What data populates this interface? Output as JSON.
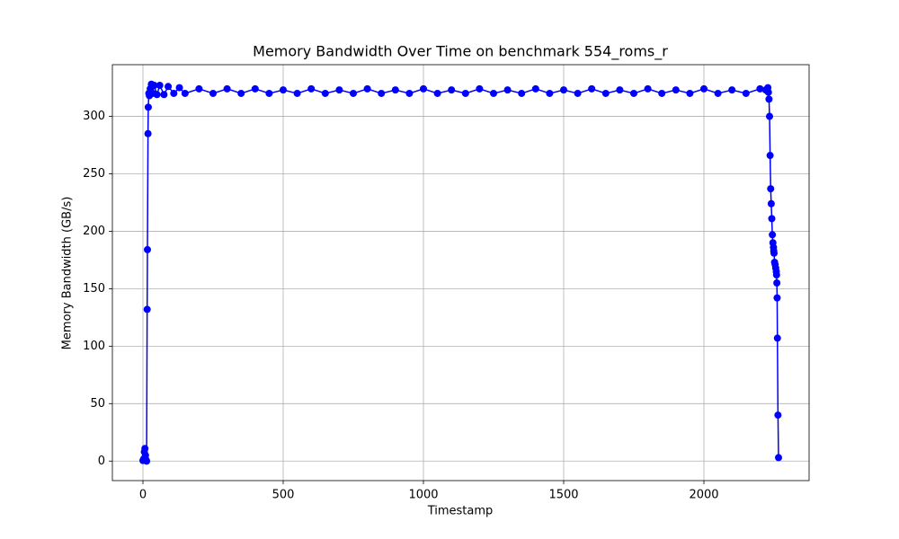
{
  "chart_data": {
    "type": "line",
    "title": "Memory Bandwidth Over Time on benchmark 554_roms_r",
    "x_label": "Timestamp",
    "y_label": "Memory Bandwidth (GB/s)",
    "x": [
      0,
      3,
      5,
      7,
      9,
      11,
      13,
      15,
      16,
      18,
      19,
      21,
      23,
      26,
      30,
      35,
      40,
      50,
      60,
      75,
      90,
      110,
      130,
      150,
      200,
      250,
      300,
      350,
      400,
      450,
      500,
      550,
      600,
      650,
      700,
      750,
      800,
      850,
      900,
      950,
      1000,
      1050,
      1100,
      1150,
      1200,
      1250,
      1300,
      1350,
      1400,
      1450,
      1500,
      1550,
      1600,
      1650,
      1700,
      1750,
      1800,
      1850,
      1900,
      1950,
      2000,
      2050,
      2100,
      2150,
      2200,
      2220,
      2228,
      2230,
      2232,
      2234,
      2236,
      2238,
      2240,
      2242,
      2244,
      2246,
      2248,
      2249,
      2250,
      2252,
      2254,
      2256,
      2258,
      2259,
      2260,
      2261,
      2262,
      2264,
      2266
    ],
    "series": [
      {
        "name": "Memory Bandwidth",
        "color": "#0000ff",
        "values": [
          0.5,
          2,
          8,
          11,
          5,
          1,
          0,
          132,
          184,
          285,
          308,
          320,
          318,
          324,
          328,
          320,
          327,
          319,
          327,
          319,
          326,
          320,
          325,
          320,
          324,
          320,
          324,
          320,
          324,
          320,
          323,
          320,
          324,
          320,
          323,
          320,
          324,
          320,
          323,
          320,
          324,
          320,
          323,
          320,
          324,
          320,
          323,
          320,
          324,
          320,
          323,
          320,
          324,
          320,
          323,
          320,
          324,
          320,
          323,
          320,
          324,
          320,
          323,
          320,
          324,
          323,
          325,
          321,
          315,
          300,
          266,
          237,
          224,
          211,
          197,
          190,
          186,
          183,
          181,
          173,
          171,
          168,
          165,
          162,
          155,
          142,
          107,
          40,
          3
        ]
      }
    ],
    "xlim": [
      -109,
      2375
    ],
    "ylim": [
      -17,
      345
    ],
    "xticks": [
      0,
      500,
      1000,
      1500,
      2000
    ],
    "yticks": [
      0,
      50,
      100,
      150,
      200,
      250,
      300
    ],
    "grid": true
  }
}
